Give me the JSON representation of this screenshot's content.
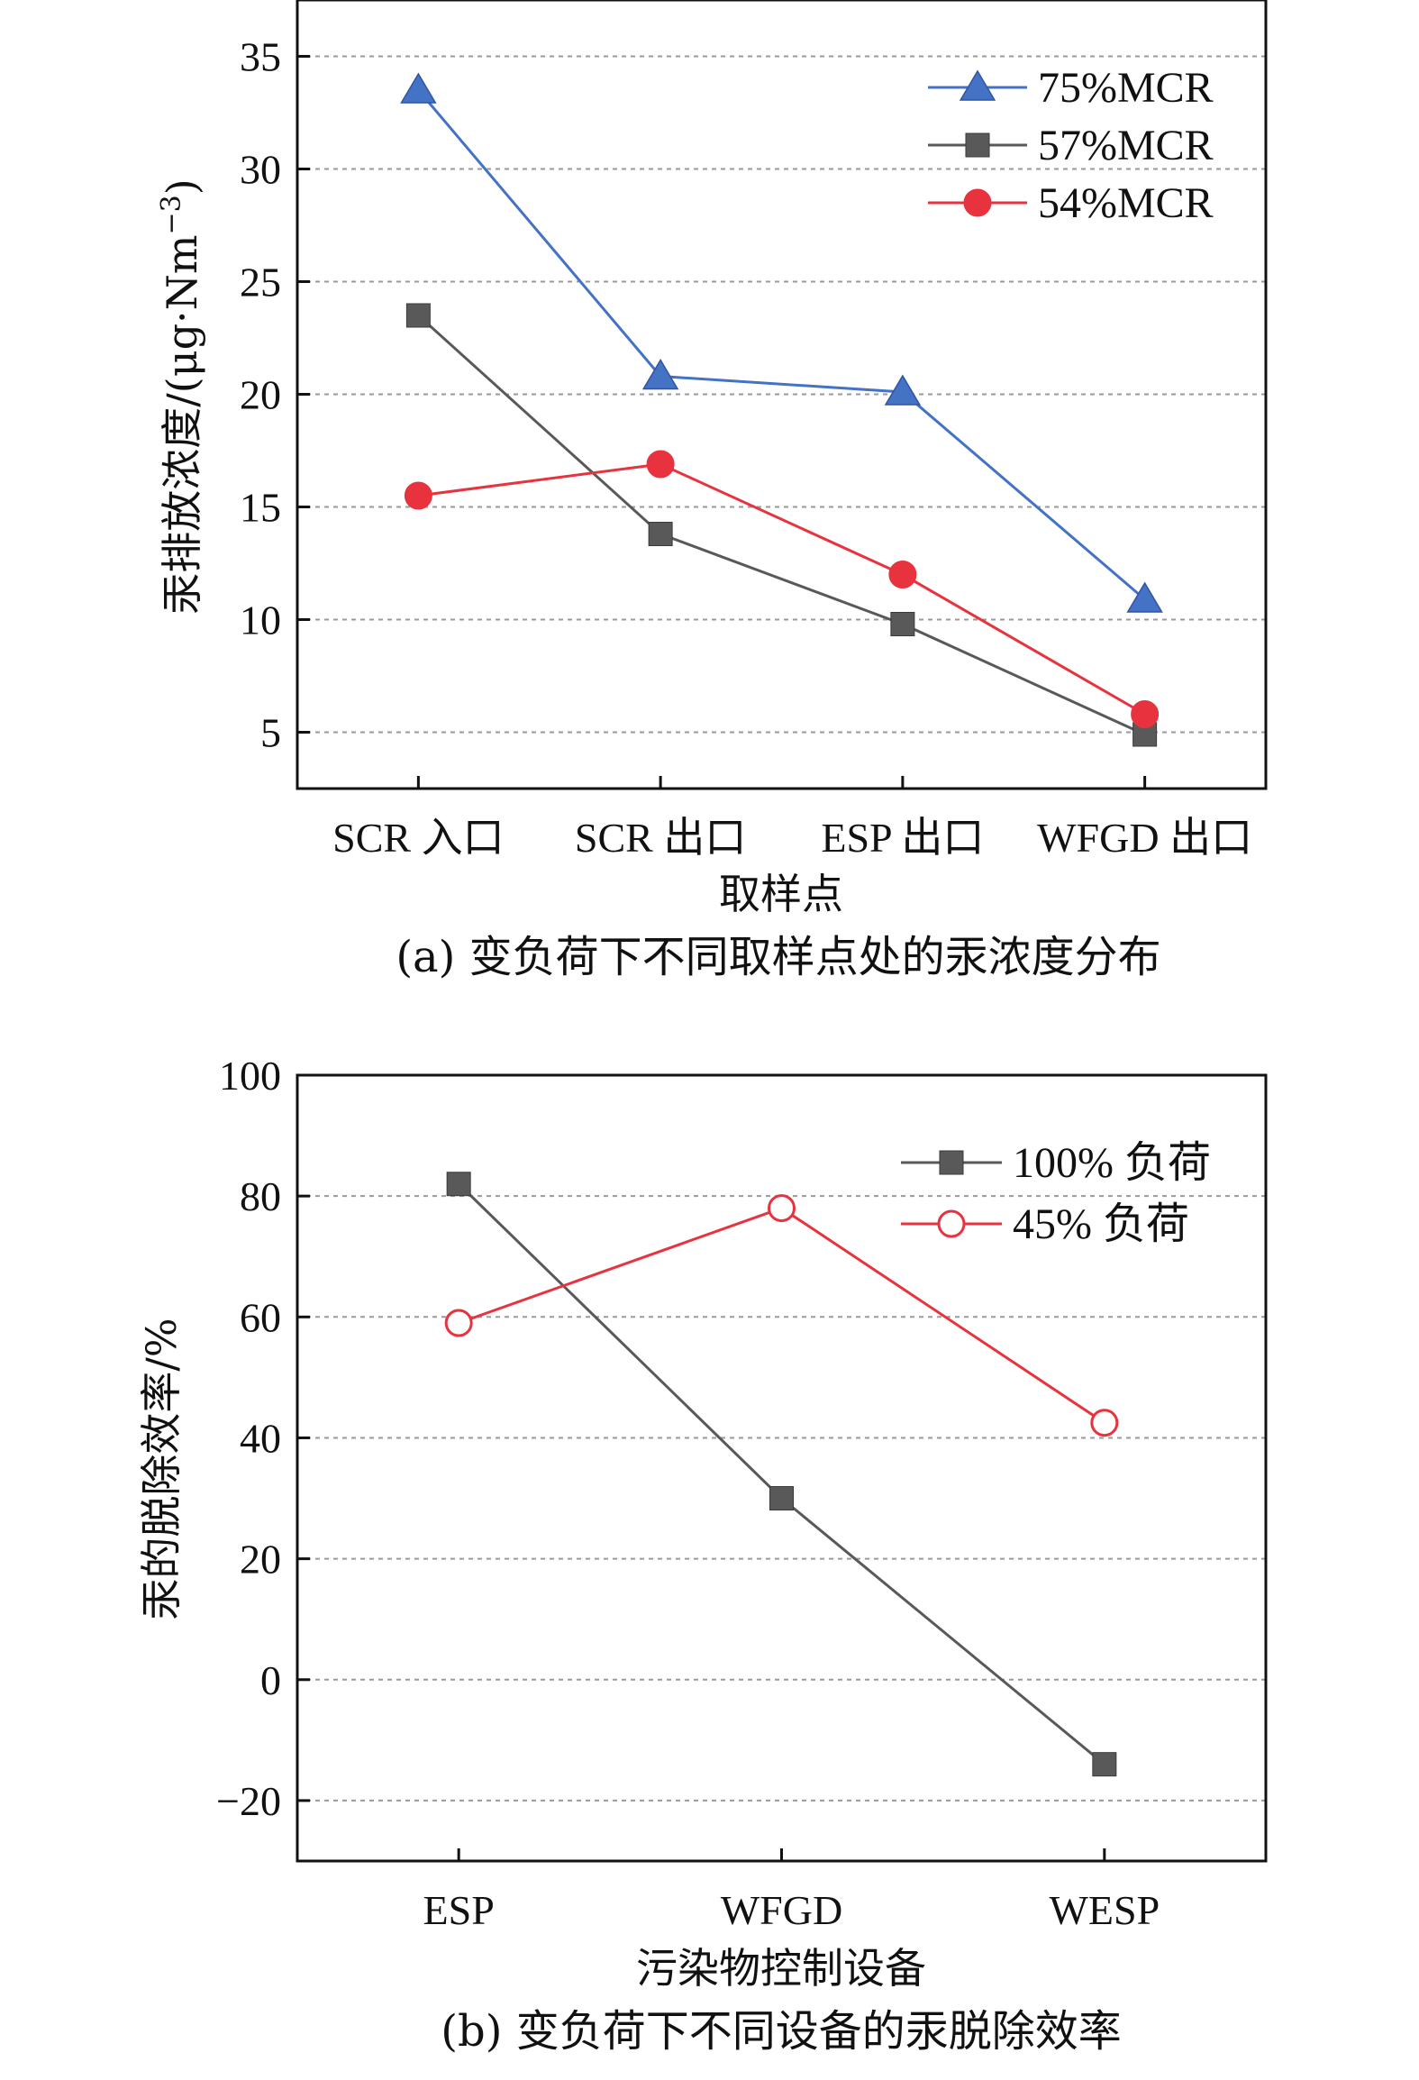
{
  "chart_data": [
    {
      "type": "line",
      "categories": [
        "SCR 入口",
        "SCR 出口",
        "ESP 出口",
        "WFGD 出口"
      ],
      "series": [
        {
          "name": "75%MCR",
          "values": [
            33.5,
            20.8,
            20.1,
            10.9
          ],
          "color": "#4472c4",
          "marker": "triangle"
        },
        {
          "name": "57%MCR",
          "values": [
            23.5,
            13.8,
            9.8,
            4.9
          ],
          "color": "#595959",
          "marker": "square"
        },
        {
          "name": "54%MCR",
          "values": [
            15.5,
            16.9,
            12.0,
            5.8
          ],
          "color": "#e8333f",
          "marker": "circle"
        }
      ],
      "xlabel": "取样点",
      "ylabel": "汞排放浓度/(μg·Nm",
      "ylabel_sup": "−3",
      "ylabel_close": ")",
      "ylim": [
        2.5,
        37.5
      ],
      "yticks": [
        5,
        10,
        15,
        20,
        25,
        30,
        35
      ],
      "grid": "horizontal dotted",
      "legend_position": "top-right",
      "caption": "(a) 变负荷下不同取样点处的汞浓度分布"
    },
    {
      "type": "line",
      "categories": [
        "ESP",
        "WFGD",
        "WESP"
      ],
      "series": [
        {
          "name": "100% 负荷",
          "values": [
            82,
            30,
            -14
          ],
          "color": "#595959",
          "marker": "square"
        },
        {
          "name": "45% 负荷",
          "values": [
            59,
            78,
            42.5
          ],
          "color": "#e8333f",
          "marker": "open-circle"
        }
      ],
      "xlabel": "污染物控制设备",
      "ylabel": "汞的脱除效率/%",
      "ylim": [
        -30,
        100
      ],
      "yticks": [
        100,
        80,
        60,
        40,
        20,
        0,
        -20
      ],
      "ytick_labels": [
        "100",
        "80",
        "60",
        "40",
        "20",
        "0",
        "−20"
      ],
      "grid": "horizontal dotted",
      "legend_position": "top-right",
      "caption": "(b) 变负荷下不同设备的汞脱除效率"
    }
  ]
}
